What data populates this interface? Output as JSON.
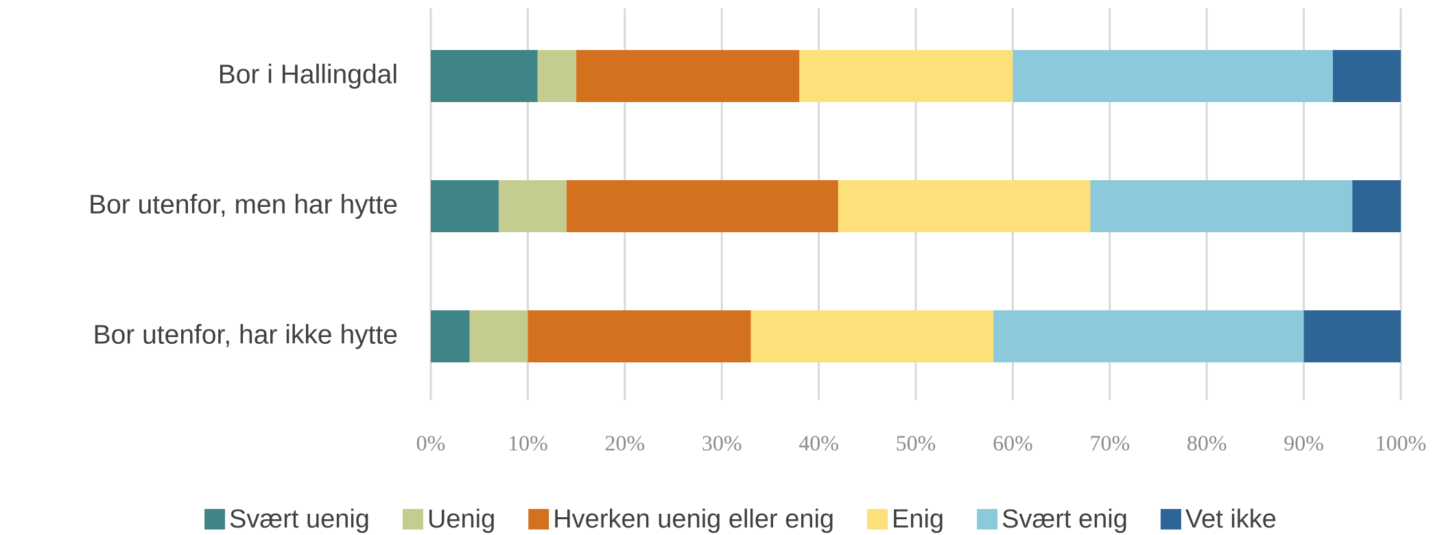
{
  "chart_data": {
    "type": "stacked-bar-horizontal",
    "categories": [
      "Bor i Hallingdal",
      "Bor utenfor, men har hytte",
      "Bor utenfor, har ikke hytte"
    ],
    "series": [
      {
        "name": "Svært uenig",
        "color": "#3f8588",
        "values": [
          11,
          7,
          4
        ]
      },
      {
        "name": "Uenig",
        "color": "#c5cc8f",
        "values": [
          4,
          7,
          6
        ]
      },
      {
        "name": "Hverken uenig eller enig",
        "color": "#d4711f",
        "values": [
          23,
          28,
          23
        ]
      },
      {
        "name": "Enig",
        "color": "#fde07a",
        "values": [
          22,
          26,
          25
        ]
      },
      {
        "name": "Svært enig",
        "color": "#8ccadb",
        "values": [
          33,
          27,
          32
        ]
      },
      {
        "name": "Vet ikke",
        "color": "#2f6596",
        "values": [
          7,
          5,
          10
        ]
      }
    ],
    "xlim": [
      0,
      100
    ],
    "xticks": [
      {
        "value": 0,
        "label": "0%"
      },
      {
        "value": 10,
        "label": "10%"
      },
      {
        "value": 20,
        "label": "20%"
      },
      {
        "value": 30,
        "label": "30%"
      },
      {
        "value": 40,
        "label": "40%"
      },
      {
        "value": 50,
        "label": "50%"
      },
      {
        "value": 60,
        "label": "60%"
      },
      {
        "value": 70,
        "label": "70%"
      },
      {
        "value": 80,
        "label": "80%"
      },
      {
        "value": 90,
        "label": "90%"
      },
      {
        "value": 100,
        "label": "100%"
      }
    ],
    "grid": true,
    "legend": "bottom"
  }
}
